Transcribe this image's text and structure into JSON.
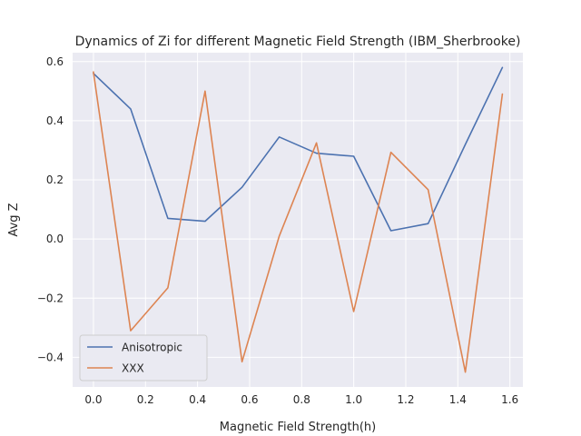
{
  "chart_data": {
    "type": "line",
    "title": "Dynamics of Zi for different Magnetic Field Strength (IBM_Sherbrooke)",
    "xlabel": "Magnetic Field Strength(h)",
    "ylabel": "Avg Z",
    "xlim": [
      -0.08,
      1.65
    ],
    "ylim": [
      -0.5,
      0.63
    ],
    "xticks": [
      "0.0",
      "0.2",
      "0.4",
      "0.6",
      "0.8",
      "1.0",
      "1.2",
      "1.4",
      "1.6"
    ],
    "xtick_values": [
      0.0,
      0.2,
      0.4,
      0.6,
      0.8,
      1.0,
      1.2,
      1.4,
      1.6
    ],
    "yticks": [
      "−0.4",
      "−0.2",
      "0.0",
      "0.2",
      "0.4",
      "0.6"
    ],
    "ytick_values": [
      -0.4,
      -0.2,
      0.0,
      0.2,
      0.4,
      0.6
    ],
    "grid": true,
    "legend_position": "lower-left",
    "x": [
      0.0,
      0.143,
      0.286,
      0.429,
      0.571,
      0.714,
      0.857,
      1.0,
      1.143,
      1.286,
      1.429,
      1.571
    ],
    "series": [
      {
        "name": "Anisotropic",
        "color": "#4c72b0",
        "values": [
          0.56,
          0.44,
          0.07,
          0.06,
          0.175,
          0.345,
          0.29,
          0.28,
          0.028,
          0.052,
          0.32,
          0.58
        ]
      },
      {
        "name": "XXX",
        "color": "#dd8452",
        "values": [
          0.565,
          -0.31,
          -0.165,
          0.5,
          -0.415,
          0.01,
          0.325,
          -0.245,
          0.293,
          0.167,
          -0.45,
          0.49
        ]
      }
    ]
  }
}
